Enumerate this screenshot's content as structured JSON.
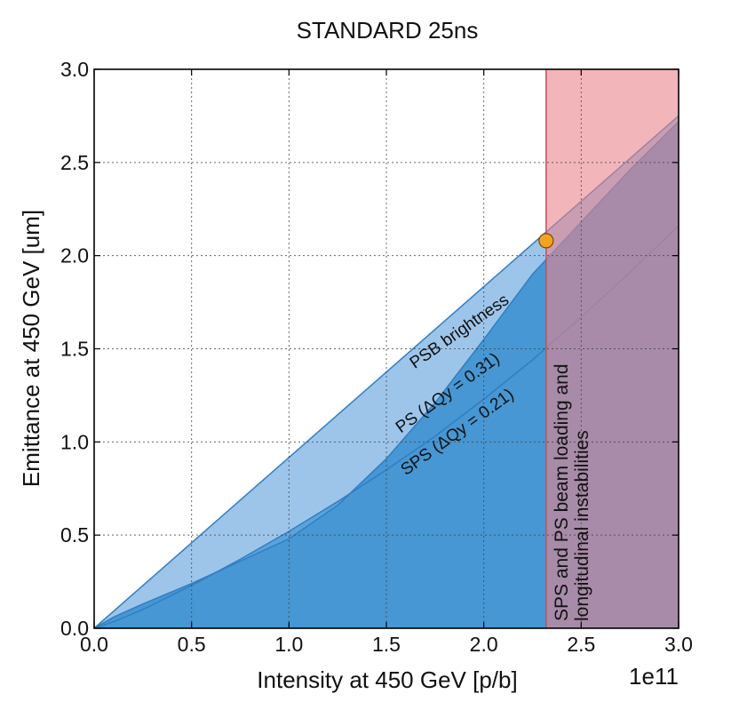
{
  "chart_data": {
    "type": "area",
    "title": "STANDARD 25ns",
    "xlabel": "Intensity at 450 GeV [p/b]",
    "ylabel": "Emittance at 450 GeV [um]",
    "x_offset_label": "1e11",
    "xlim": [
      0.0,
      3.0
    ],
    "ylim": [
      0.0,
      3.0
    ],
    "xticks": [
      "0.0",
      "0.5",
      "1.0",
      "1.5",
      "2.0",
      "2.5",
      "3.0"
    ],
    "yticks": [
      "0.0",
      "0.5",
      "1.0",
      "1.5",
      "2.0",
      "2.5",
      "3.0"
    ],
    "grid": true,
    "series": [
      {
        "name": "PSB brightness",
        "color": "#9dc5ea",
        "x": [
          0.0,
          3.0
        ],
        "y": [
          0.0,
          2.75
        ]
      },
      {
        "name": "PS (ΔQy = 0.31)",
        "color": "#5ba3db",
        "x": [
          0.0,
          0.1,
          0.25,
          0.5,
          0.75,
          1.0,
          1.25,
          1.5,
          1.75,
          2.0,
          2.25,
          2.5,
          2.75,
          3.0
        ],
        "y": [
          0.0,
          0.035,
          0.1,
          0.23,
          0.37,
          0.52,
          0.68,
          0.85,
          1.03,
          1.23,
          1.44,
          1.67,
          1.91,
          2.16
        ]
      },
      {
        "name": "SPS (ΔQy = 0.21)",
        "color": "#4697d3",
        "x": [
          0.0,
          0.1,
          0.25,
          0.5,
          0.75,
          1.0,
          1.25,
          1.5,
          1.75,
          2.0,
          2.25,
          2.5,
          2.75,
          3.0
        ],
        "y": [
          0.0,
          0.06,
          0.13,
          0.24,
          0.36,
          0.48,
          0.66,
          0.91,
          1.21,
          1.55,
          1.9,
          2.18,
          2.46,
          2.72
        ]
      }
    ],
    "curve_labels": [
      {
        "text": "PSB brightness",
        "x": 1.89,
        "y": 1.57,
        "angle": -35
      },
      {
        "text": "PS (ΔQy = 0.31)",
        "x": 1.83,
        "y": 1.24,
        "angle": -36
      },
      {
        "text": "SPS (ΔQy = 0.21)",
        "x": 1.88,
        "y": 1.03,
        "angle": -36
      }
    ],
    "limit_region": {
      "x_start": 2.32,
      "x_end": 3.0,
      "color": "#e8848c",
      "opacity": 0.6,
      "label_line1": "SPS and PS beam loading and",
      "label_line2": "longitudinal instabilities"
    },
    "working_point": {
      "x": 2.32,
      "y": 2.08,
      "color": "#f5a21e"
    }
  }
}
